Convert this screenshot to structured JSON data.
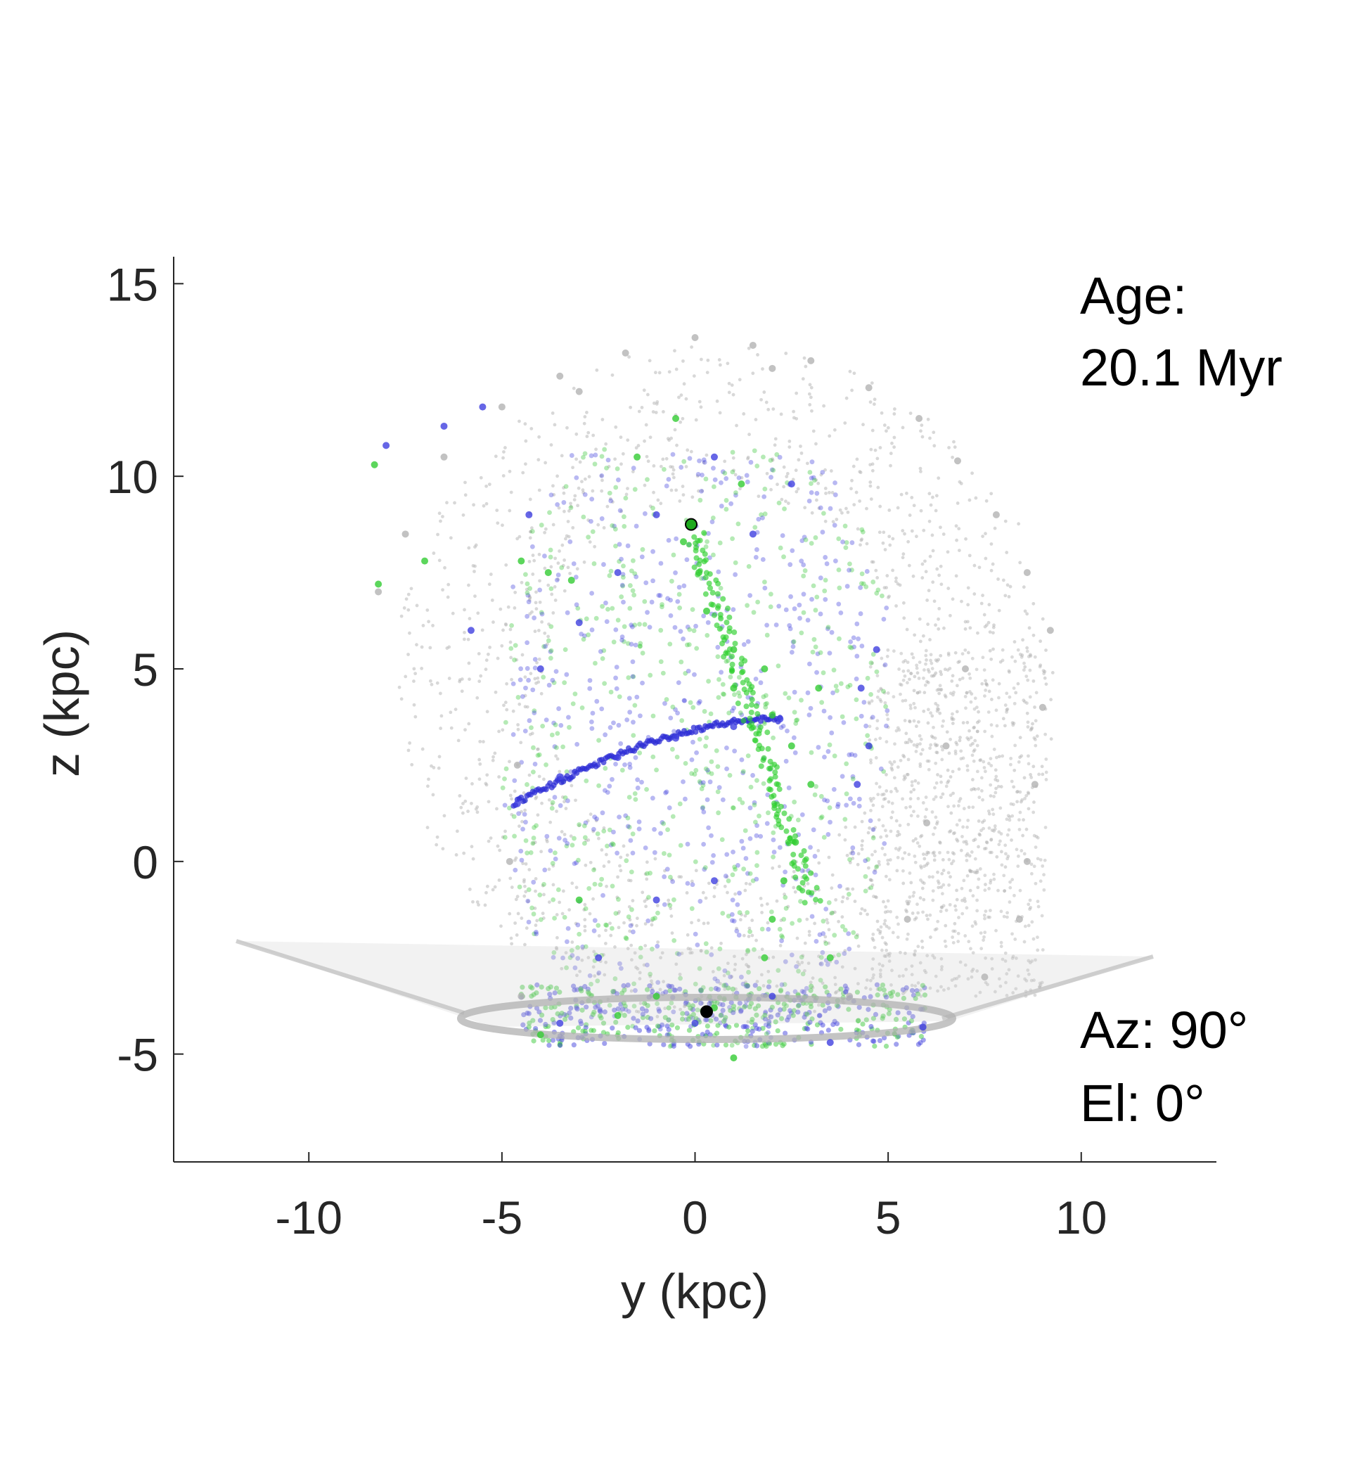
{
  "chart_data": {
    "type": "scatter",
    "title": "",
    "xlabel": "y (kpc)",
    "ylabel": "z (kpc)",
    "xlim": [
      -13.5,
      13.5
    ],
    "ylim": [
      -7.8,
      15.7
    ],
    "x_ticks": [
      -10,
      -5,
      0,
      5,
      10
    ],
    "x_tick_labels": [
      "-10",
      "-5",
      "0",
      "5",
      "10"
    ],
    "y_ticks": [
      -5,
      0,
      5,
      10,
      15
    ],
    "y_tick_labels": [
      "-5",
      "0",
      "5",
      "10",
      "15"
    ],
    "grid": false,
    "legend": "none",
    "annotations": {
      "age_label": "Age:",
      "age_value": "20.1 Myr",
      "azimuth": "Az: 90°",
      "elevation": "El: 0°"
    },
    "series": [
      {
        "color": "#b3b3b3",
        "points": [
          [
            -8.2,
            7.0
          ],
          [
            -7.5,
            8.5
          ],
          [
            -6.5,
            10.5
          ],
          [
            -5.0,
            11.8
          ],
          [
            -3.5,
            12.6
          ],
          [
            -1.8,
            13.2
          ],
          [
            0.0,
            13.6
          ],
          [
            1.5,
            13.4
          ],
          [
            3.0,
            13.0
          ],
          [
            4.5,
            12.3
          ],
          [
            5.8,
            11.5
          ],
          [
            6.8,
            10.4
          ],
          [
            7.8,
            9.0
          ],
          [
            8.6,
            7.5
          ],
          [
            9.2,
            6.0
          ],
          [
            9.0,
            4.0
          ],
          [
            8.8,
            2.0
          ],
          [
            8.6,
            0.0
          ],
          [
            8.4,
            -1.5
          ],
          [
            7.5,
            -3.0
          ],
          [
            6.0,
            1.0
          ],
          [
            6.5,
            3.0
          ],
          [
            7.0,
            5.0
          ],
          [
            5.5,
            -1.5
          ],
          [
            4.0,
            -3.5
          ],
          [
            -4.5,
            -3.5
          ],
          [
            -4.8,
            0.0
          ],
          [
            -4.6,
            2.5
          ],
          [
            -3.0,
            12.2
          ],
          [
            2.0,
            12.8
          ]
        ]
      },
      {
        "color": "#4040e0",
        "points": [
          [
            -8.0,
            10.8
          ],
          [
            -6.5,
            11.3
          ],
          [
            -5.5,
            11.8
          ],
          [
            -5.8,
            6.0
          ],
          [
            -4.6,
            1.5
          ],
          [
            -3.5,
            2.2
          ],
          [
            -2.0,
            2.7
          ],
          [
            -0.5,
            3.2
          ],
          [
            1.0,
            3.5
          ],
          [
            2.2,
            3.7
          ],
          [
            -4.0,
            5.0
          ],
          [
            -3.0,
            6.2
          ],
          [
            -2.0,
            7.5
          ],
          [
            -1.0,
            9.0
          ],
          [
            0.5,
            10.5
          ],
          [
            4.3,
            4.5
          ],
          [
            4.5,
            3.0
          ],
          [
            4.2,
            2.0
          ],
          [
            4.7,
            5.5
          ],
          [
            3.5,
            -4.7
          ],
          [
            5.9,
            -4.3
          ],
          [
            -3.5,
            -4.2
          ],
          [
            -1.0,
            -1.0
          ],
          [
            0.5,
            -0.5
          ],
          [
            -2.5,
            -2.5
          ],
          [
            1.5,
            8.5
          ],
          [
            2.5,
            9.8
          ],
          [
            -4.3,
            9.0
          ],
          [
            0.0,
            -4.2
          ],
          [
            2.0,
            -3.5
          ]
        ]
      },
      {
        "color": "#33cc33",
        "points": [
          [
            -8.3,
            10.3
          ],
          [
            -8.2,
            7.2
          ],
          [
            -7.0,
            7.8
          ],
          [
            -4.5,
            7.8
          ],
          [
            -3.8,
            7.5
          ],
          [
            -3.2,
            7.3
          ],
          [
            -0.3,
            8.3
          ],
          [
            0.1,
            7.5
          ],
          [
            0.3,
            6.5
          ],
          [
            1.0,
            5.5
          ],
          [
            1.8,
            5.0
          ],
          [
            2.0,
            3.8
          ],
          [
            2.5,
            3.0
          ],
          [
            3.0,
            2.0
          ],
          [
            2.6,
            0.5
          ],
          [
            2.3,
            -0.5
          ],
          [
            2.0,
            -1.5
          ],
          [
            1.8,
            -2.5
          ],
          [
            -4.0,
            -4.5
          ],
          [
            -2.0,
            -4.0
          ],
          [
            1.0,
            -5.1
          ],
          [
            -1.0,
            -3.5
          ],
          [
            3.5,
            -2.5
          ],
          [
            1.2,
            9.8
          ],
          [
            -1.5,
            10.5
          ],
          [
            -0.5,
            11.5
          ],
          [
            1.0,
            4.5
          ],
          [
            -3.0,
            -1.0
          ],
          [
            3.2,
            4.5
          ],
          [
            0.5,
            -3.8
          ]
        ]
      }
    ],
    "markers": [
      {
        "color": "#1faa1f",
        "x": -0.1,
        "y": 8.75
      },
      {
        "color": "#000000",
        "x": 0.3,
        "y": -3.9
      }
    ]
  }
}
